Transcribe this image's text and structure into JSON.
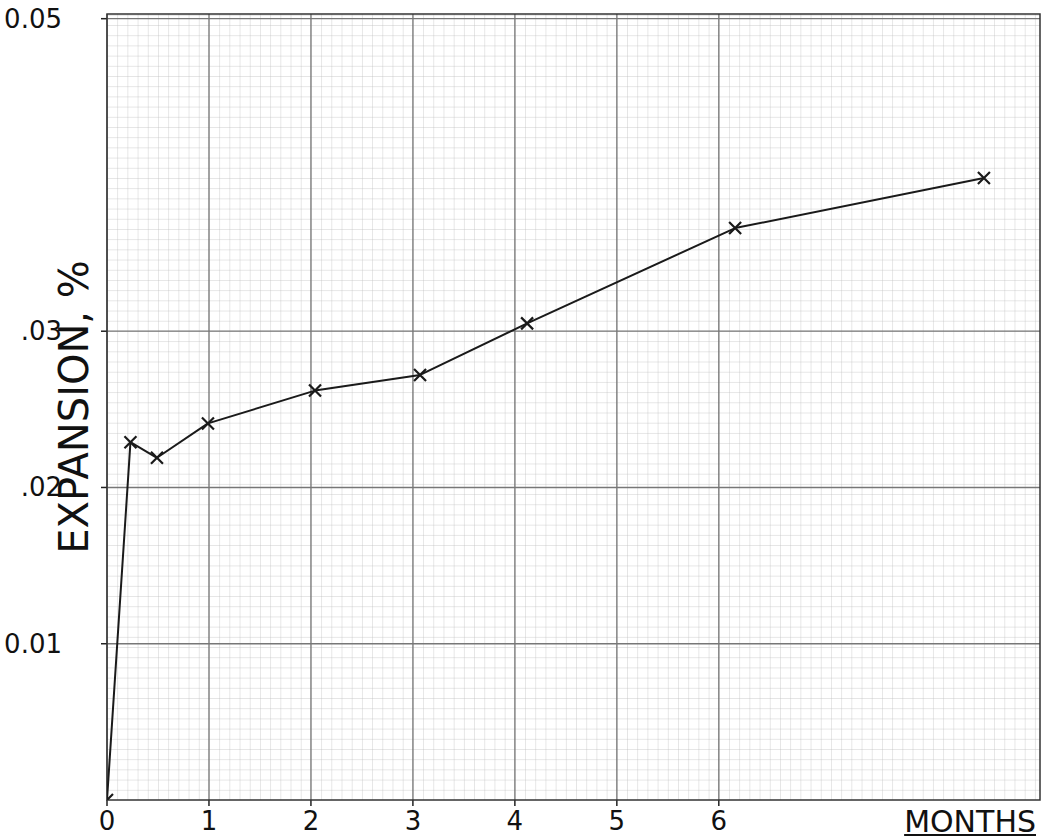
{
  "chart_data": {
    "type": "line",
    "x_label": "MONTHS",
    "y_label": "EXPANSION, %",
    "x": [
      0,
      0.23,
      0.49,
      0.99,
      2.04,
      3.07,
      4.12,
      6.16,
      8.6
    ],
    "series": [
      {
        "name": null,
        "color": "#1a1a1a",
        "marker": "x",
        "line_style": "solid",
        "values": [
          0,
          0.0229,
          0.0219,
          0.0241,
          0.0262,
          0.0272,
          0.0305,
          0.0366,
          0.0398
        ]
      }
    ],
    "xlim": [
      0,
      9.15
    ],
    "ylim": [
      0,
      0.0503
    ],
    "xticks": [
      0,
      1,
      2,
      3,
      4,
      5,
      6
    ],
    "yticks": [
      0.01,
      {
        "value": 0.02,
        "label": ".02"
      },
      {
        "value": 0.03,
        "label": ".03"
      },
      0.05
    ],
    "grid": true
  }
}
